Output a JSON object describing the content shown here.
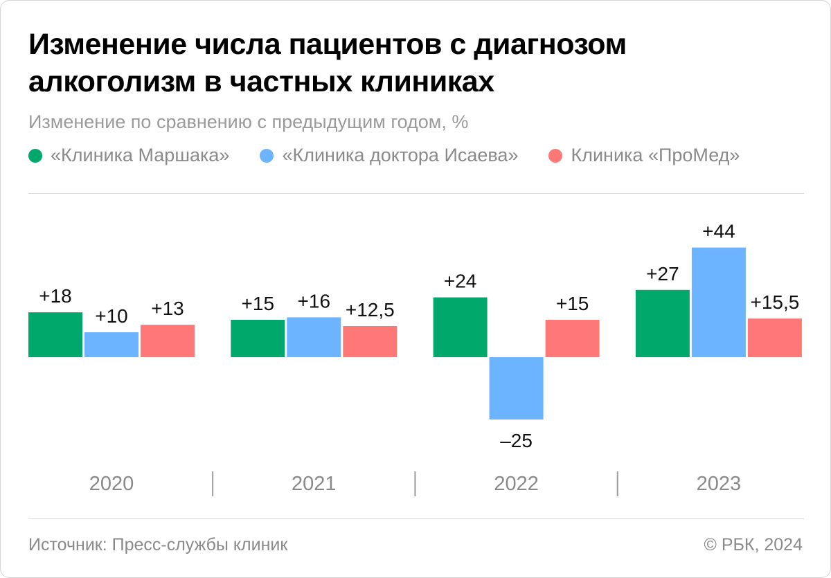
{
  "title_lines": [
    "Изменение числа пациентов с диагнозом",
    "алкоголизм в частных клиниках"
  ],
  "subtitle": "Изменение по сравнению с предыдущим годом, %",
  "legend": [
    {
      "label": "«Клиника Маршака»",
      "color": "#00a86b"
    },
    {
      "label": "«Клиника доктора Исаева»",
      "color": "#6cb4ff"
    },
    {
      "label": "Клиника «ПроМед»",
      "color": "#ff7878"
    }
  ],
  "chart_data": {
    "type": "bar",
    "title": "Изменение числа пациентов с диагнозом алкоголизм в частных клиниках",
    "ylabel": "Изменение по сравнению с предыдущим годом, %",
    "categories": [
      "2020",
      "2021",
      "2022",
      "2023"
    ],
    "series": [
      {
        "name": "«Клиника Маршака»",
        "color": "#00a86b",
        "values": [
          18,
          15,
          24,
          27
        ],
        "labels": [
          "+18",
          "+15",
          "+24",
          "+27"
        ]
      },
      {
        "name": "«Клиника доктора Исаева»",
        "color": "#6cb4ff",
        "values": [
          10,
          16,
          -25,
          44
        ],
        "labels": [
          "+10",
          "+16",
          "–25",
          "+44"
        ]
      },
      {
        "name": "Клиника «ПроМед»",
        "color": "#ff7878",
        "values": [
          13,
          12.5,
          15,
          15.5
        ],
        "labels": [
          "+13",
          "+12,5",
          "+15",
          "+15,5"
        ]
      }
    ],
    "ylim": [
      -25,
      44
    ],
    "grid": false,
    "legend": "top-left"
  },
  "footer": {
    "source": "Источник: Пресс-службы клиник",
    "copyright": "© РБК, 2024"
  }
}
